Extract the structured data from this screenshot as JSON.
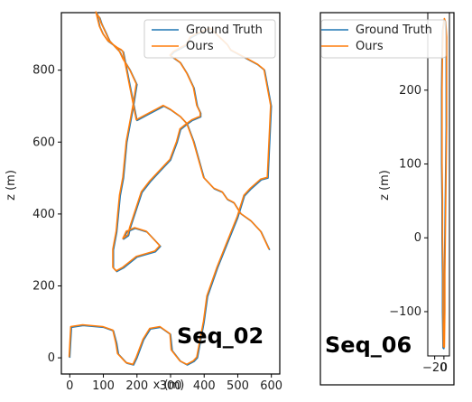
{
  "chart_data": [
    {
      "type": "line",
      "xlabel": "x (m)",
      "ylabel": "z (m)",
      "xlim": [
        -25,
        625
      ],
      "ylim": [
        -45,
        960
      ],
      "xticks": [
        0,
        100,
        200,
        300,
        400,
        500,
        600
      ],
      "yticks": [
        0,
        200,
        400,
        600,
        800
      ],
      "legend": "top-right",
      "grid": false,
      "annotation": "Seq_02",
      "series": [
        {
          "name": "Ground Truth",
          "color": "#1f77b4",
          "x": [
            0,
            5,
            40,
            100,
            130,
            140,
            145,
            170,
            190,
            200,
            220,
            240,
            270,
            300,
            305,
            330,
            350,
            370,
            380,
            400,
            410,
            440,
            470,
            500,
            520,
            540,
            570,
            590,
            600,
            580,
            560,
            480,
            470,
            420,
            380,
            360,
            350,
            330,
            310,
            300,
            330,
            350,
            370,
            380,
            390,
            390,
            365,
            350,
            330,
            320,
            300,
            270,
            240,
            215,
            180,
            175,
            160,
            170,
            195,
            230,
            250,
            270,
            260,
            255,
            200,
            160,
            140,
            130,
            130,
            140,
            145,
            150,
            160,
            170,
            190,
            200,
            180,
            160,
            150,
            140,
            130,
            115,
            100,
            90,
            85,
            80,
            85,
            90,
            95,
            100,
            105,
            110,
            115,
            120,
            130,
            145,
            155,
            160,
            200,
            240,
            260,
            280,
            300,
            330,
            350,
            370,
            400,
            430,
            455,
            470,
            490,
            510,
            540,
            570,
            595
          ],
          "y": [
            0,
            85,
            90,
            85,
            75,
            40,
            10,
            -15,
            -20,
            0,
            50,
            80,
            85,
            65,
            20,
            -10,
            -20,
            -10,
            0,
            100,
            170,
            250,
            320,
            390,
            450,
            470,
            495,
            500,
            700,
            800,
            815,
            855,
            870,
            915,
            900,
            890,
            870,
            860,
            850,
            840,
            820,
            790,
            750,
            700,
            680,
            670,
            660,
            650,
            635,
            600,
            550,
            520,
            490,
            460,
            360,
            340,
            330,
            350,
            360,
            350,
            330,
            310,
            300,
            295,
            280,
            250,
            240,
            250,
            300,
            350,
            400,
            450,
            500,
            600,
            700,
            760,
            800,
            830,
            850,
            860,
            870,
            880,
            900,
            920,
            940,
            960,
            950,
            945,
            930,
            920,
            910,
            900,
            890,
            880,
            870,
            860,
            855,
            850,
            660,
            680,
            690,
            700,
            690,
            670,
            650,
            600,
            500,
            470,
            460,
            440,
            430,
            400,
            380,
            350,
            300
          ]
        },
        {
          "name": "Ours",
          "color": "#ff7f0e",
          "x": [
            -2,
            3,
            38,
            98,
            128,
            137,
            142,
            167,
            188,
            198,
            218,
            238,
            268,
            298,
            302,
            327,
            348,
            368,
            378,
            398,
            408,
            438,
            468,
            498,
            518,
            538,
            568,
            588,
            598,
            578,
            558,
            478,
            468,
            418,
            378,
            358,
            348,
            328,
            308,
            298,
            328,
            348,
            368,
            378,
            388,
            388,
            363,
            348,
            328,
            318,
            298,
            268,
            238,
            213,
            178,
            173,
            158,
            168,
            193,
            228,
            248,
            268,
            258,
            253,
            198,
            158,
            138,
            128,
            128,
            138,
            143,
            148,
            158,
            168,
            188,
            198,
            178,
            158,
            148,
            138,
            128,
            113,
            98,
            88,
            83,
            78,
            83,
            88,
            93,
            98,
            103,
            108,
            113,
            118,
            128,
            143,
            153,
            158,
            198,
            238,
            258,
            278,
            298,
            328,
            348,
            368,
            398,
            428,
            453,
            468,
            488,
            508,
            538,
            568,
            593
          ],
          "y": [
            2,
            87,
            92,
            87,
            77,
            42,
            12,
            -13,
            -18,
            2,
            52,
            82,
            87,
            67,
            22,
            -8,
            -18,
            -8,
            2,
            102,
            172,
            252,
            322,
            392,
            452,
            472,
            497,
            502,
            702,
            802,
            817,
            857,
            872,
            917,
            902,
            892,
            872,
            862,
            852,
            842,
            822,
            792,
            752,
            702,
            682,
            672,
            662,
            652,
            637,
            602,
            552,
            522,
            492,
            462,
            362,
            342,
            332,
            352,
            362,
            352,
            332,
            312,
            302,
            297,
            282,
            252,
            242,
            252,
            302,
            352,
            402,
            452,
            502,
            602,
            702,
            762,
            802,
            832,
            852,
            862,
            872,
            882,
            902,
            922,
            942,
            962,
            952,
            947,
            932,
            922,
            912,
            902,
            892,
            882,
            872,
            862,
            857,
            852,
            662,
            682,
            692,
            702,
            692,
            672,
            652,
            602,
            502,
            472,
            462,
            442,
            432,
            402,
            382,
            352,
            302
          ]
        }
      ]
    },
    {
      "type": "line",
      "xlabel": "",
      "ylabel": "z (m)",
      "xlim": [
        -35,
        12
      ],
      "ylim": [
        -160,
        305
      ],
      "xticks": [
        -20,
        0
      ],
      "xtick_labels": [
        "−20",
        "0"
      ],
      "yticks": [
        -100,
        0,
        100,
        200
      ],
      "ytick_labels": [
        "−100",
        "0",
        "100",
        "200"
      ],
      "legend": "top-right",
      "grid": false,
      "annotation": "Seq_06",
      "series": [
        {
          "name": "Ground Truth",
          "color": "#1f77b4",
          "x": [
            -2,
            -3,
            -3,
            -4,
            -4,
            -5,
            -5,
            -5,
            -4,
            -3,
            0,
            3,
            5,
            5,
            5,
            4,
            3,
            2,
            1,
            1,
            0,
            -2
          ],
          "y": [
            -150,
            -100,
            -50,
            0,
            50,
            100,
            150,
            200,
            250,
            280,
            295,
            290,
            270,
            200,
            150,
            100,
            50,
            0,
            -50,
            -100,
            -150,
            -150
          ]
        },
        {
          "name": "Ours",
          "color": "#ff7f0e",
          "x": [
            -1,
            -2,
            -2,
            -3,
            -3,
            -4,
            -4,
            -4,
            -3,
            -2,
            1,
            4,
            6,
            6,
            6,
            5,
            4,
            3,
            2,
            2,
            1,
            -1
          ],
          "y": [
            -148,
            -98,
            -48,
            2,
            52,
            102,
            152,
            202,
            252,
            282,
            297,
            292,
            272,
            202,
            152,
            102,
            52,
            2,
            -48,
            -98,
            -148,
            -148
          ]
        }
      ]
    }
  ],
  "legend_labels": [
    "Ground Truth",
    "Ours"
  ],
  "seq_labels": [
    "Seq_02",
    "Seq_06"
  ]
}
